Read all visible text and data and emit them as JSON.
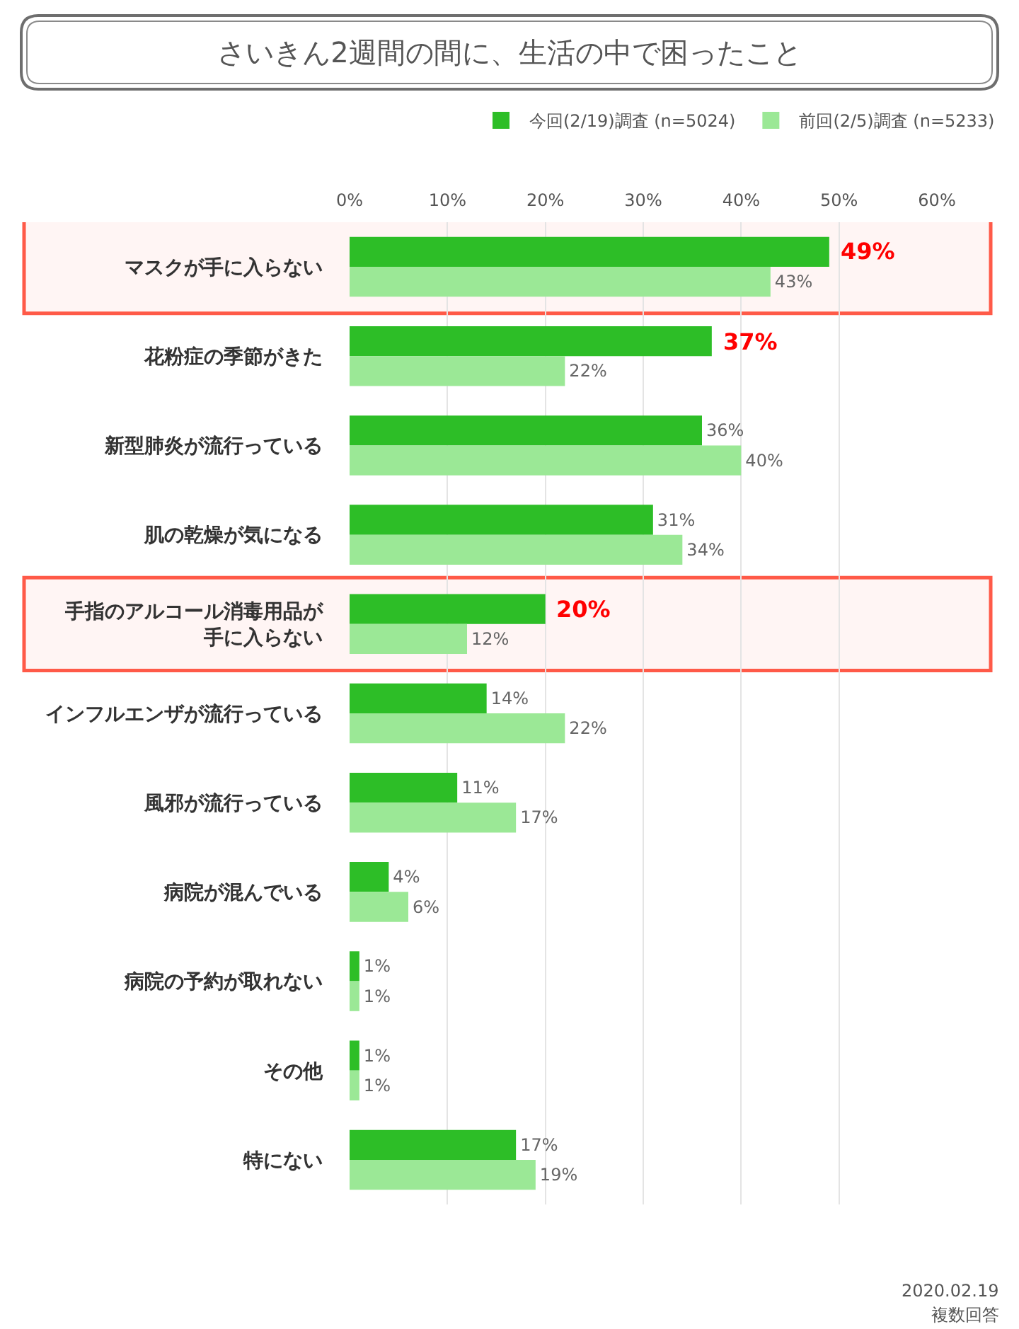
{
  "chart_data": {
    "type": "bar",
    "orientation": "horizontal",
    "title": "さいきん2週間の間に、生活の中で困ったこと",
    "categories": [
      "マスクが手に入らない",
      "花粉症の季節がきた",
      "新型肺炎が流行っている",
      "肌の乾燥が気になる",
      "手指のアルコール消毒用品が手に入らない",
      "インフルエンザが流行っている",
      "風邪が流行っている",
      "病院が混んでいる",
      "病院の予約が取れない",
      "その他",
      "特にない"
    ],
    "series": [
      {
        "name": "今回(2/19)調査 (n=5024)",
        "color": "#2dbe27",
        "values": [
          49,
          37,
          36,
          31,
          20,
          14,
          11,
          4,
          1,
          1,
          17
        ],
        "value_labels": [
          null,
          null,
          "36%",
          "31%",
          null,
          "14%",
          "11%",
          "4%",
          "1%",
          "1%",
          "17%"
        ]
      },
      {
        "name": "前回(2/5)調査 (n=5233)",
        "color": "#9be896",
        "values": [
          43,
          22,
          40,
          34,
          12,
          22,
          17,
          6,
          1,
          1,
          19
        ],
        "value_labels": [
          "43%",
          "22%",
          "40%",
          "34%",
          "12%",
          "22%",
          "17%",
          "6%",
          "1%",
          "1%",
          "19%"
        ]
      }
    ],
    "xlim": [
      0,
      60
    ],
    "xticks": [
      {
        "value": 0,
        "label": "0%"
      },
      {
        "value": 10,
        "label": "10%"
      },
      {
        "value": 20,
        "label": "20%"
      },
      {
        "value": 30,
        "label": "30%"
      },
      {
        "value": 40,
        "label": "40%"
      },
      {
        "value": 50,
        "label": "50%"
      },
      {
        "value": 60,
        "label": "60%"
      }
    ],
    "grid": "x",
    "legend": "top right",
    "bands": [
      {
        "axis": "y",
        "from": "マスクが手に入らない",
        "to": "マスクが手に入らない",
        "color": "#ff5a48"
      },
      {
        "axis": "y",
        "from": "手指のアルコール消毒用品が手に入らない",
        "to": "手指のアルコール消毒用品が手に入らない",
        "color": "#ff5a48"
      }
    ],
    "annotations": [
      {
        "text": "49%",
        "x": 49,
        "y": "マスクが手に入らない"
      },
      {
        "text": "37%",
        "x": 37,
        "y": "花粉症の季節がきた"
      },
      {
        "text": "20%",
        "x": 20,
        "y": "手指のアルコール消毒用品が手に入らない"
      },
      "2020.02.19",
      "複数回答"
    ]
  }
}
